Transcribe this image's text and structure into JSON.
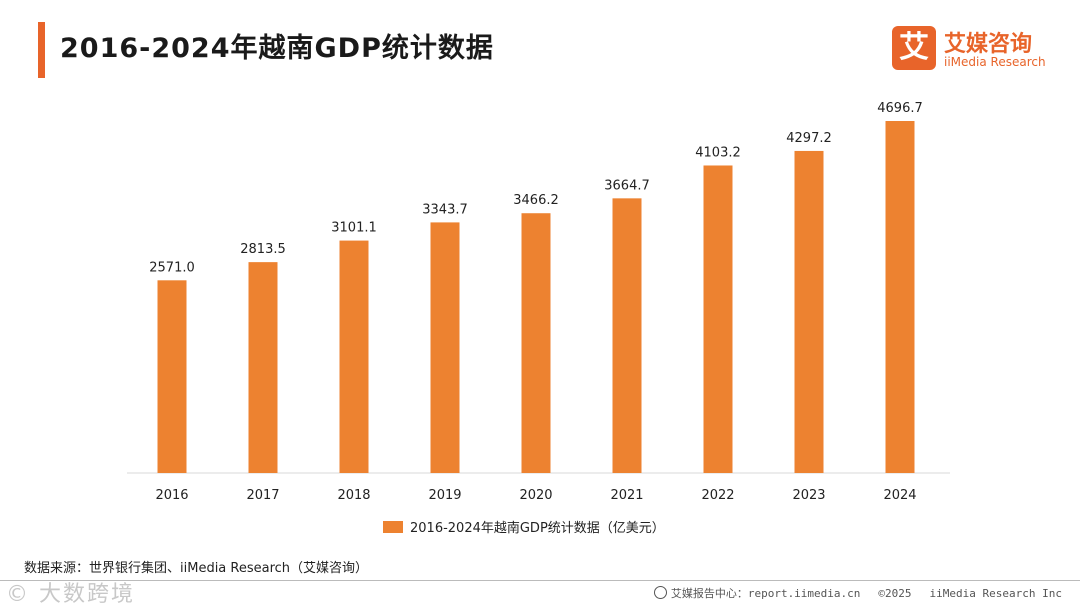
{
  "header": {
    "title": "2016-2024年越南GDP统计数据"
  },
  "logo": {
    "mark": "艾",
    "name_cn": "艾媒咨询",
    "name_en": "iiMedia Research"
  },
  "chart_data": {
    "type": "bar",
    "title": "2016-2024年越南GDP统计数据",
    "categories": [
      "2016",
      "2017",
      "2018",
      "2019",
      "2020",
      "2021",
      "2022",
      "2023",
      "2024"
    ],
    "series": [
      {
        "name": "2016-2024年越南GDP统计数据（亿美元）",
        "values": [
          2571.0,
          2813.5,
          3101.1,
          3343.7,
          3466.2,
          3664.7,
          4103.2,
          4297.2,
          4696.7
        ],
        "labels": [
          "2571.0",
          "2813.5",
          "3101.1",
          "3343.7",
          "3466.2",
          "3664.7",
          "4103.2",
          "4297.2",
          "4696.7"
        ]
      }
    ],
    "ylim": [
      0,
      5000
    ],
    "grid": false,
    "legend": "bottom-center",
    "color": "#ed8230"
  },
  "legend": {
    "label": "2016-2024年越南GDP统计数据（亿美元）"
  },
  "source": "数据来源：世界银行集团、iiMedia Research（艾媒咨询）",
  "footer": {
    "watermark": "© 大数跨境",
    "report_center": "艾媒报告中心：report.iimedia.cn",
    "copyright": "©2025",
    "company": "iiMedia Research Inc"
  }
}
